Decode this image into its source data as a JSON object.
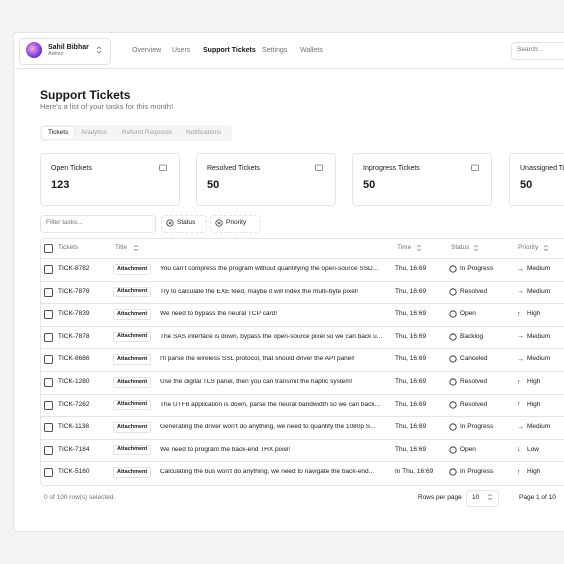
{
  "user": {
    "name": "Sahil Bibhar",
    "role": "Admin"
  },
  "nav": [
    "Overview",
    "Users",
    "Support Tickets",
    "Settings",
    "Wallets"
  ],
  "search": "Search...",
  "header": {
    "title": "Support Tickets",
    "subtitle": "Here's a list of your tasks for this month!"
  },
  "tabs": [
    "Tickets",
    "Analytics",
    "Refund Requests",
    "Notifications"
  ],
  "stats": [
    {
      "label": "Open Tickets",
      "value": 123
    },
    {
      "label": "Resolved Tickets",
      "value": 50
    },
    {
      "label": "Inprogress Tickets",
      "value": 50
    },
    {
      "label": "Unassigned Ti",
      "value": 50
    }
  ],
  "filter": {
    "placeholder": "Filter tasks...",
    "buttons": [
      "Status",
      "Priority"
    ]
  },
  "table": {
    "columns": [
      "Tickets",
      "Title",
      "Time",
      "Status",
      "Priority"
    ],
    "rows": [
      {
        "id": "TICK-8782",
        "tag": "Attachment",
        "title": "You can't compress the program without quantifying the open-source SSD...",
        "time": "Thu, 16:69",
        "status": "In Progress",
        "priority_icon": "→",
        "priority": "Medium"
      },
      {
        "id": "TICK-7878",
        "tag": "Attachment",
        "title": "Try to calculate the EXE feed, maybe it will index the multi-byte pixel!",
        "time": "Thu, 16:69",
        "status": "Resolved",
        "priority_icon": "→",
        "priority": "Medium"
      },
      {
        "id": "TICK-7839",
        "tag": "Attachment",
        "title": "We need to bypass the neural TCP card!",
        "time": "Thu, 16:69",
        "status": "Open",
        "priority_icon": "↑",
        "priority": "High"
      },
      {
        "id": "TICK-7878",
        "tag": "Attachment",
        "title": "The SAS interface is down, bypass the open-source pixel so we can back u...",
        "time": "Thu, 16:69",
        "status": "Backlog",
        "priority_icon": "→",
        "priority": "Medium"
      },
      {
        "id": "TICK-8686",
        "tag": "Attachment",
        "title": "I'll parse the wireless SSL protocol, that should driver the API panel!",
        "time": "Thu, 16:69",
        "status": "Canceled",
        "priority_icon": "→",
        "priority": "Medium"
      },
      {
        "id": "TICK-1280",
        "tag": "Attachment",
        "title": "Use the digital TLS panel, then you can transmit the haptic system!",
        "time": "Thu, 16:69",
        "status": "Resolved",
        "priority_icon": "↑",
        "priority": "High"
      },
      {
        "id": "TICK-7262",
        "tag": "Attachment",
        "title": "The UTF8 application is down, parse the neural bandwidth so we can back...",
        "time": "Thu, 16:69",
        "status": "Resolved",
        "priority_icon": "↑",
        "priority": "High"
      },
      {
        "id": "TICK-1138",
        "tag": "Attachment",
        "title": "Generating the driver won't do anything, we need to quantify the 1080p S...",
        "time": "Thu, 16:69",
        "status": "In Progress",
        "priority_icon": "→",
        "priority": "Medium"
      },
      {
        "id": "TICK-7184",
        "tag": "Attachment",
        "title": "We need to program the back-end THX pixel!",
        "time": "Thu, 16:69",
        "status": "Open",
        "priority_icon": "↓",
        "priority": "Low"
      },
      {
        "id": "TICK-5160",
        "tag": "Attachment",
        "title": "Calculating the bus won't do anything, we need to navigate the back-end...",
        "time": "In Thu, 16:69",
        "status": "In Progress",
        "priority_icon": "↑",
        "priority": "High"
      }
    ]
  },
  "footer": {
    "selected": "0 of 100 row(s) selected.",
    "rows_label": "Rows per page",
    "rows_value": "10",
    "page": "Page 1 of 10"
  }
}
